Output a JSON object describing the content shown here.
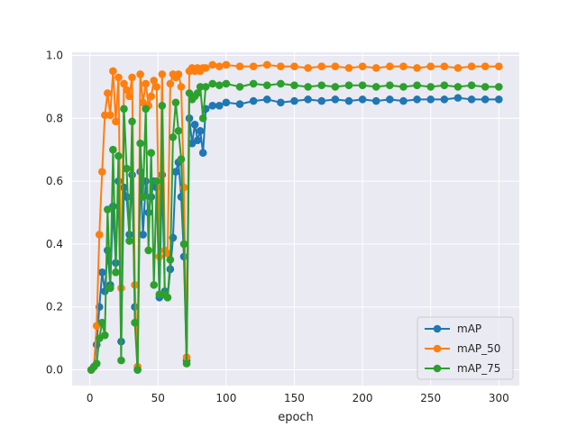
{
  "chart_data": {
    "type": "line",
    "xlabel": "epoch",
    "ylabel": "",
    "xlim": [
      -13,
      315
    ],
    "ylim": [
      -0.05,
      1.01
    ],
    "x_ticks": [
      0,
      50,
      100,
      150,
      200,
      250,
      300
    ],
    "y_ticks": [
      0.0,
      0.2,
      0.4,
      0.6,
      0.8,
      1.0
    ],
    "x_tick_labels": [
      "0",
      "50",
      "100",
      "150",
      "200",
      "250",
      "300"
    ],
    "y_tick_labels": [
      "0.0",
      "0.2",
      "0.4",
      "0.6",
      "0.8",
      "1.0"
    ],
    "grid": true,
    "legend_position": "lower right",
    "series": [
      {
        "name": "mAP",
        "color": "#1f77b4",
        "x": [
          1,
          3,
          5,
          7,
          9,
          11,
          13,
          15,
          17,
          19,
          21,
          23,
          25,
          27,
          29,
          31,
          33,
          35,
          37,
          39,
          41,
          43,
          45,
          47,
          49,
          51,
          53,
          55,
          57,
          59,
          61,
          63,
          65,
          67,
          69,
          71,
          73,
          75,
          77,
          79,
          81,
          83,
          85,
          90,
          95,
          100,
          110,
          120,
          130,
          140,
          150,
          160,
          170,
          180,
          190,
          200,
          210,
          220,
          230,
          240,
          250,
          260,
          270,
          280,
          290,
          300
        ],
        "values": [
          0.0,
          0.01,
          0.08,
          0.2,
          0.31,
          0.25,
          0.38,
          0.27,
          0.52,
          0.34,
          0.6,
          0.09,
          0.58,
          0.55,
          0.43,
          0.62,
          0.2,
          0.0,
          0.63,
          0.43,
          0.6,
          0.5,
          0.55,
          0.6,
          0.58,
          0.23,
          0.62,
          0.25,
          0.23,
          0.32,
          0.42,
          0.63,
          0.66,
          0.55,
          0.36,
          0.03,
          0.8,
          0.72,
          0.78,
          0.73,
          0.76,
          0.69,
          0.83,
          0.84,
          0.84,
          0.85,
          0.845,
          0.855,
          0.86,
          0.85,
          0.855,
          0.86,
          0.855,
          0.86,
          0.855,
          0.86,
          0.855,
          0.86,
          0.855,
          0.86,
          0.86,
          0.86,
          0.865,
          0.86,
          0.86,
          0.86
        ]
      },
      {
        "name": "mAP_50",
        "color": "#ff7f0e",
        "x": [
          1,
          3,
          5,
          7,
          9,
          11,
          13,
          15,
          17,
          19,
          21,
          23,
          25,
          27,
          29,
          31,
          33,
          35,
          37,
          39,
          41,
          43,
          45,
          47,
          49,
          51,
          53,
          55,
          57,
          59,
          61,
          63,
          65,
          67,
          69,
          71,
          73,
          75,
          77,
          79,
          81,
          83,
          85,
          90,
          95,
          100,
          110,
          120,
          130,
          140,
          150,
          160,
          170,
          180,
          190,
          200,
          210,
          220,
          230,
          240,
          250,
          260,
          270,
          280,
          290,
          300
        ],
        "values": [
          0.0,
          0.01,
          0.14,
          0.43,
          0.63,
          0.81,
          0.88,
          0.81,
          0.95,
          0.79,
          0.93,
          0.26,
          0.91,
          0.89,
          0.87,
          0.93,
          0.27,
          0.01,
          0.94,
          0.85,
          0.91,
          0.84,
          0.87,
          0.92,
          0.9,
          0.36,
          0.94,
          0.38,
          0.37,
          0.91,
          0.94,
          0.93,
          0.94,
          0.9,
          0.58,
          0.04,
          0.95,
          0.96,
          0.95,
          0.96,
          0.95,
          0.96,
          0.96,
          0.97,
          0.965,
          0.97,
          0.965,
          0.965,
          0.97,
          0.965,
          0.965,
          0.96,
          0.965,
          0.965,
          0.96,
          0.965,
          0.96,
          0.965,
          0.965,
          0.96,
          0.965,
          0.965,
          0.96,
          0.965,
          0.965,
          0.965
        ]
      },
      {
        "name": "mAP_75",
        "color": "#2ca02c",
        "x": [
          1,
          3,
          5,
          7,
          9,
          11,
          13,
          15,
          17,
          19,
          21,
          23,
          25,
          27,
          29,
          31,
          33,
          35,
          37,
          39,
          41,
          43,
          45,
          47,
          49,
          51,
          53,
          55,
          57,
          59,
          61,
          63,
          65,
          67,
          69,
          71,
          73,
          75,
          77,
          79,
          81,
          83,
          85,
          90,
          95,
          100,
          110,
          120,
          130,
          140,
          150,
          160,
          170,
          180,
          190,
          200,
          210,
          220,
          230,
          240,
          250,
          260,
          270,
          280,
          290,
          300
        ],
        "values": [
          0.0,
          0.01,
          0.02,
          0.1,
          0.15,
          0.11,
          0.51,
          0.26,
          0.7,
          0.31,
          0.68,
          0.03,
          0.83,
          0.64,
          0.41,
          0.79,
          0.15,
          0.0,
          0.72,
          0.55,
          0.83,
          0.38,
          0.69,
          0.27,
          0.6,
          0.24,
          0.84,
          0.24,
          0.23,
          0.35,
          0.74,
          0.85,
          0.76,
          0.67,
          0.4,
          0.02,
          0.88,
          0.86,
          0.87,
          0.88,
          0.9,
          0.8,
          0.9,
          0.91,
          0.905,
          0.91,
          0.9,
          0.91,
          0.905,
          0.91,
          0.905,
          0.9,
          0.905,
          0.9,
          0.905,
          0.905,
          0.9,
          0.905,
          0.9,
          0.905,
          0.9,
          0.905,
          0.9,
          0.905,
          0.9,
          0.9
        ]
      }
    ]
  }
}
